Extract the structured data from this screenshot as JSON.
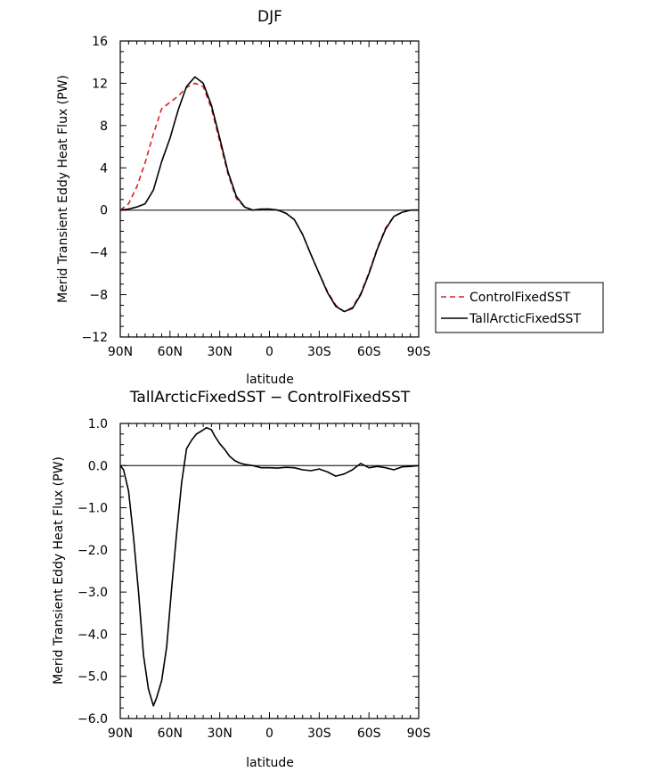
{
  "chart_data": [
    {
      "type": "line",
      "title": "DJF",
      "xlabel": "latitude",
      "ylabel": "Merid Transient Eddy Heat Flux (PW)",
      "xlim": [
        90,
        -90
      ],
      "ylim": [
        -12,
        16
      ],
      "x_ticks": [
        90,
        60,
        30,
        0,
        -30,
        -60,
        -90
      ],
      "x_tick_labels": [
        "90N",
        "60N",
        "30N",
        "0",
        "30S",
        "60S",
        "90S"
      ],
      "y_ticks": [
        -12,
        -8,
        -4,
        0,
        4,
        8,
        12,
        16
      ],
      "y_tick_labels": [
        "−12",
        "−8",
        "−4",
        "0",
        "4",
        "8",
        "12",
        "16"
      ],
      "legend_position": "right",
      "series": [
        {
          "name": "ControlFixedSST",
          "color": "#e02020",
          "dash": "dashed",
          "x": [
            90,
            85,
            80,
            75,
            70,
            65,
            60,
            55,
            50,
            45,
            40,
            35,
            30,
            25,
            20,
            15,
            10,
            5,
            0,
            -5,
            -10,
            -15,
            -20,
            -25,
            -30,
            -35,
            -40,
            -45,
            -50,
            -55,
            -60,
            -65,
            -70,
            -75,
            -80,
            -85,
            -90
          ],
          "y": [
            0,
            0.6,
            2.2,
            4.5,
            7.2,
            9.6,
            10.2,
            10.8,
            11.6,
            12.0,
            11.7,
            9.6,
            6.5,
            3.4,
            1.1,
            0.3,
            0.0,
            0.1,
            0.1,
            0.0,
            -0.3,
            -0.9,
            -2.3,
            -4.2,
            -6.0,
            -7.7,
            -9.0,
            -9.6,
            -9.2,
            -7.9,
            -5.9,
            -3.6,
            -1.7,
            -0.6,
            -0.2,
            0,
            0
          ]
        },
        {
          "name": "TallArcticFixedSST",
          "color": "#000000",
          "dash": "solid",
          "x": [
            90,
            85,
            80,
            75,
            70,
            65,
            60,
            55,
            50,
            45,
            40,
            35,
            30,
            25,
            20,
            15,
            10,
            5,
            0,
            -5,
            -10,
            -15,
            -20,
            -25,
            -30,
            -35,
            -40,
            -45,
            -50,
            -55,
            -60,
            -65,
            -70,
            -75,
            -80,
            -85,
            -90
          ],
          "y": [
            0,
            0.1,
            0.3,
            0.6,
            1.9,
            4.6,
            6.8,
            9.5,
            11.7,
            12.6,
            12.0,
            9.9,
            6.8,
            3.6,
            1.3,
            0.3,
            0.0,
            0.1,
            0.1,
            0.0,
            -0.3,
            -0.9,
            -2.3,
            -4.2,
            -6.0,
            -7.8,
            -9.1,
            -9.6,
            -9.3,
            -8.0,
            -6.0,
            -3.7,
            -1.8,
            -0.6,
            -0.2,
            0,
            0
          ]
        }
      ]
    },
    {
      "type": "line",
      "title": "TallArcticFixedSST − ControlFixedSST",
      "xlabel": "latitude",
      "ylabel": "Merid Transient Eddy Heat Flux (PW)",
      "xlim": [
        90,
        -90
      ],
      "ylim": [
        -6,
        1
      ],
      "x_ticks": [
        90,
        60,
        30,
        0,
        -30,
        -60,
        -90
      ],
      "x_tick_labels": [
        "90N",
        "60N",
        "30N",
        "0",
        "30S",
        "60S",
        "90S"
      ],
      "y_ticks": [
        -6,
        -5,
        -4,
        -3,
        -2,
        -1,
        0,
        1
      ],
      "y_tick_labels": [
        "−6.0",
        "−5.0",
        "−4.0",
        "−3.0",
        "−2.0",
        "−1.0",
        "0.0",
        "1.0"
      ],
      "series": [
        {
          "color": "#000000",
          "dash": "solid",
          "x": [
            90,
            88,
            85,
            82,
            79,
            76,
            73,
            70,
            68,
            65,
            62,
            59,
            56,
            53,
            50,
            47,
            44,
            41,
            38,
            35,
            33,
            30,
            27,
            24,
            21,
            18,
            15,
            10,
            5,
            0,
            -5,
            -10,
            -15,
            -20,
            -25,
            -30,
            -35,
            -40,
            -45,
            -50,
            -55,
            -60,
            -65,
            -70,
            -75,
            -80,
            -85,
            -90
          ],
          "y": [
            0,
            -0.1,
            -0.6,
            -1.7,
            -3.0,
            -4.5,
            -5.3,
            -5.7,
            -5.5,
            -5.1,
            -4.3,
            -2.9,
            -1.6,
            -0.4,
            0.4,
            0.6,
            0.75,
            0.82,
            0.9,
            0.85,
            0.7,
            0.52,
            0.38,
            0.22,
            0.12,
            0.06,
            0.03,
            0.0,
            -0.05,
            -0.05,
            -0.06,
            -0.04,
            -0.05,
            -0.1,
            -0.12,
            -0.08,
            -0.15,
            -0.25,
            -0.2,
            -0.1,
            0.05,
            -0.05,
            -0.02,
            -0.05,
            -0.1,
            -0.03,
            -0.02,
            0.0
          ]
        }
      ]
    }
  ]
}
